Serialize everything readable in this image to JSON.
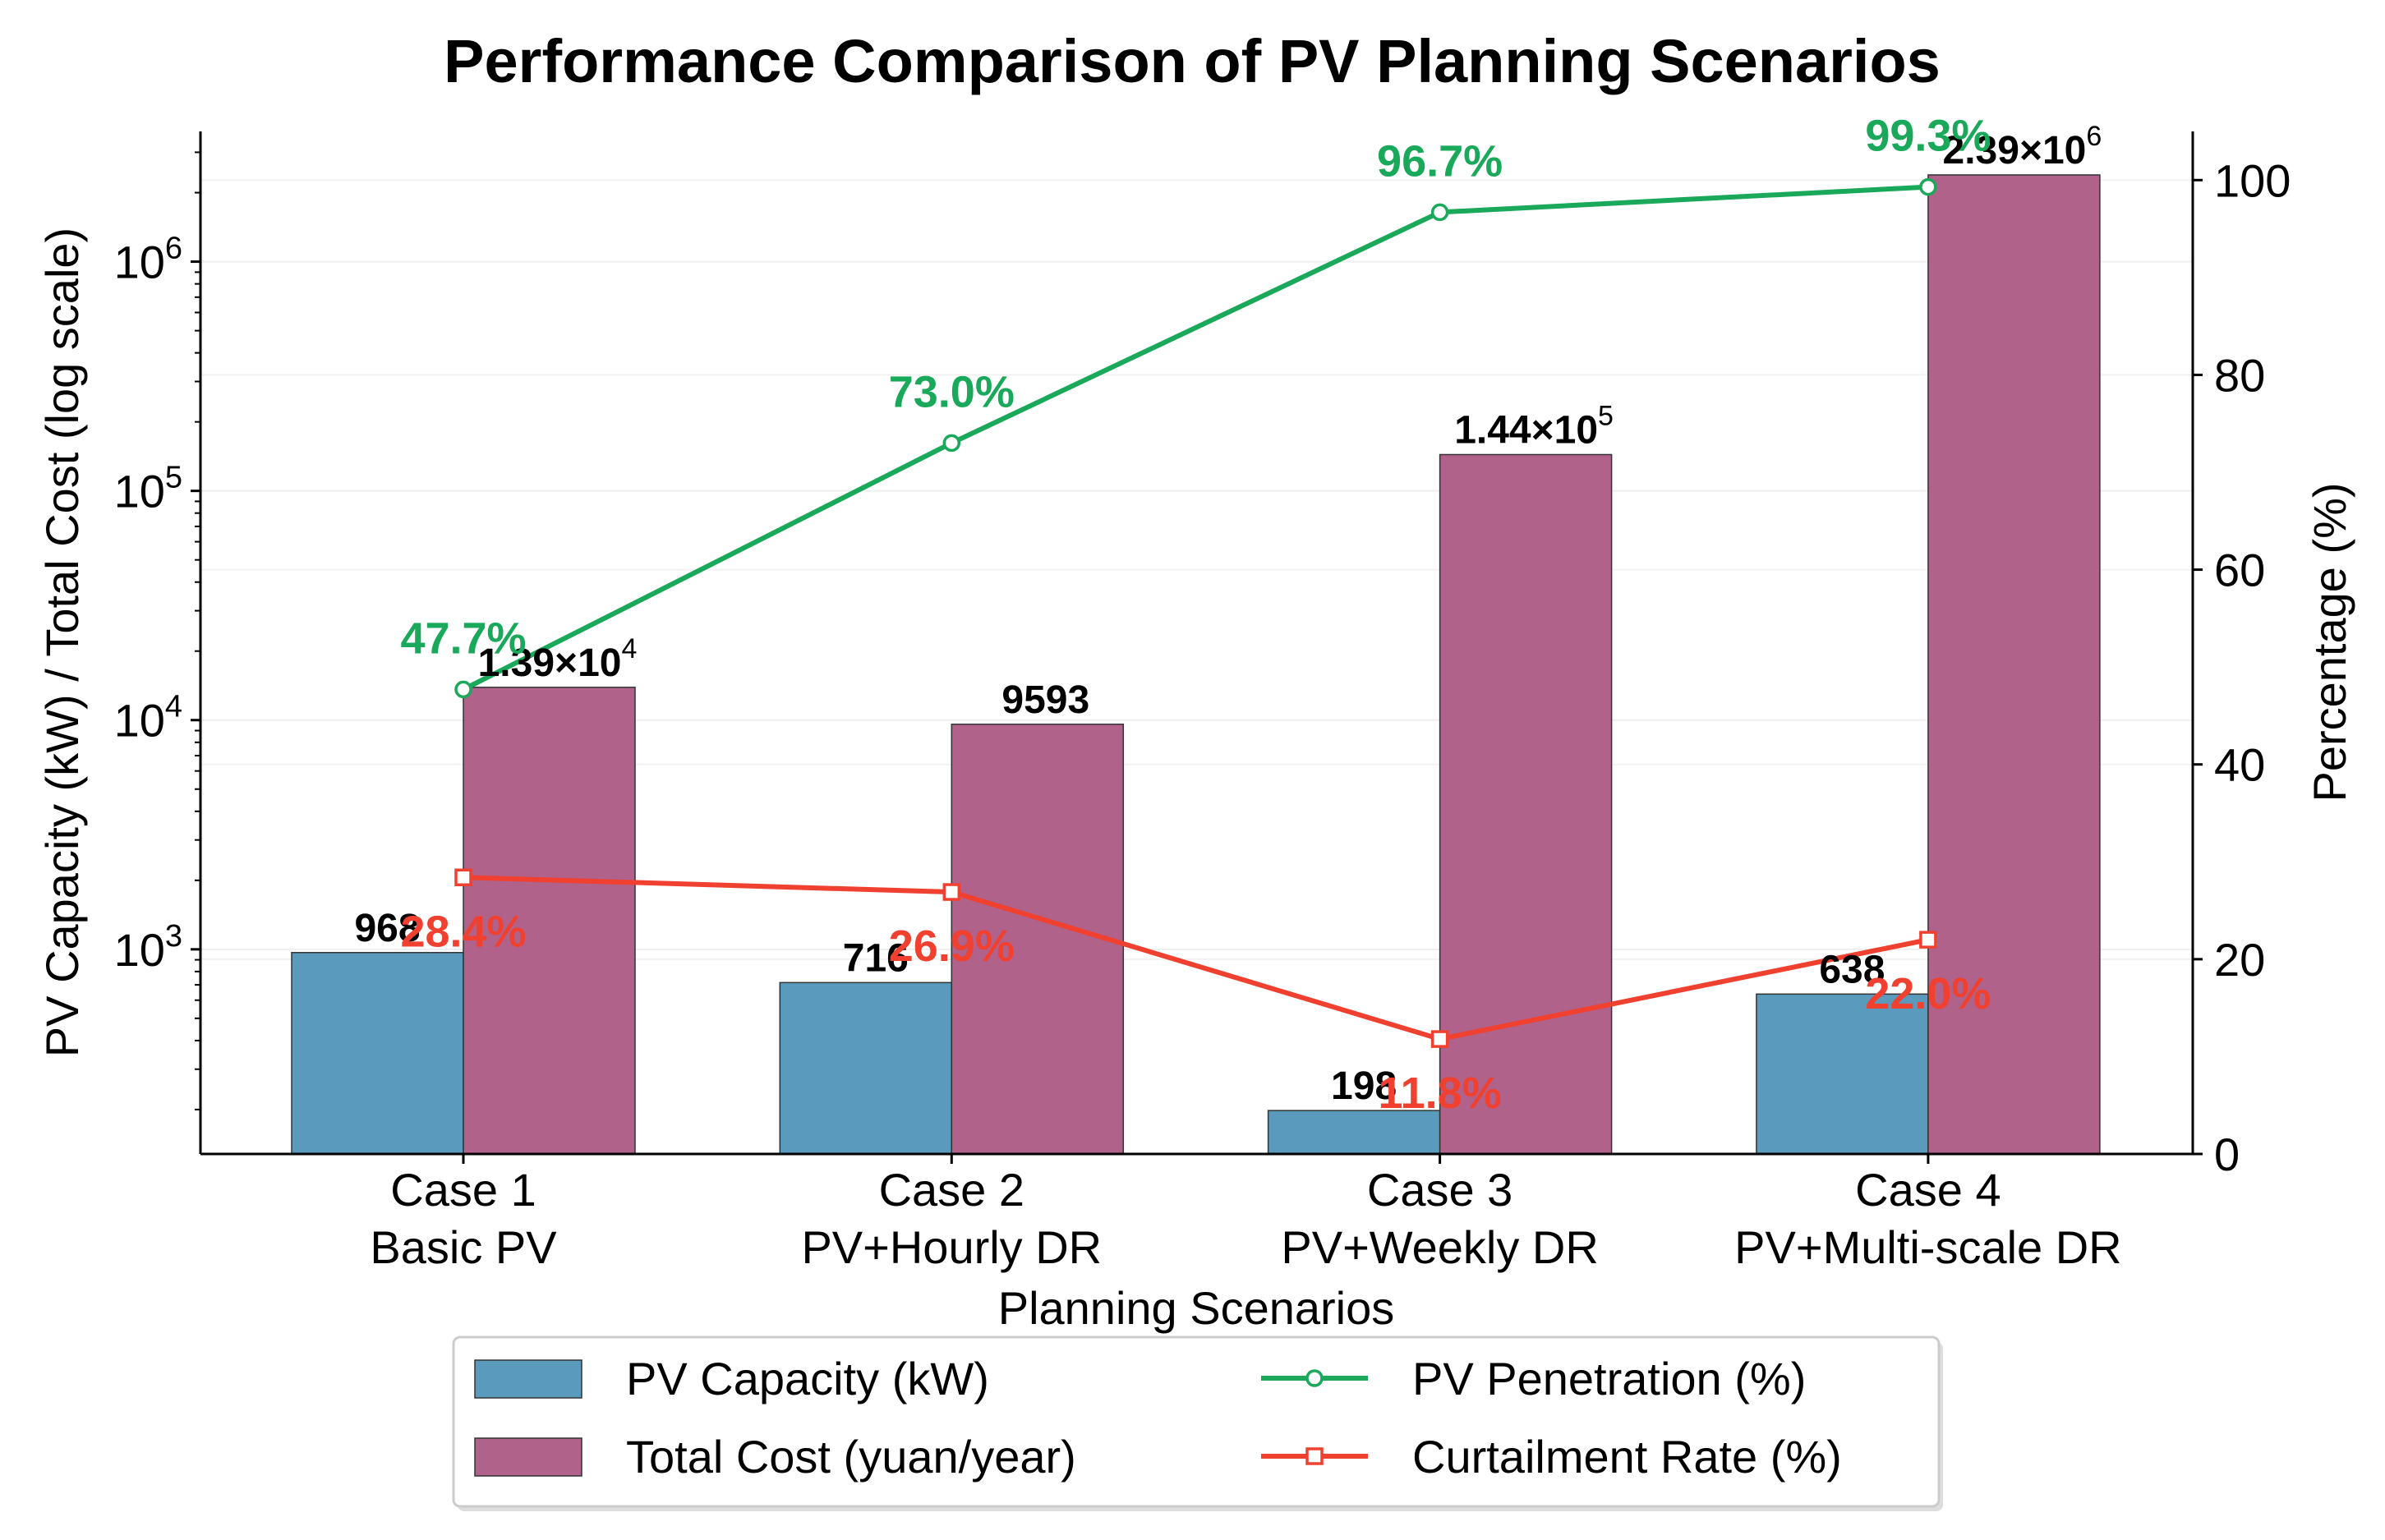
{
  "chart_data": {
    "type": "bar",
    "title": "Performance Comparison of PV Planning Scenarios",
    "xlabel": "Planning Scenarios",
    "ylabel": "PV Capacity (kW) / Total Cost (log scale)",
    "ylabel_right": "Percentage (%)",
    "yscale": "log",
    "ylim": [
      128,
      3700000
    ],
    "ylim_right": [
      0,
      105
    ],
    "yticks": [
      {
        "value": 1000,
        "base": "10",
        "exp": "3"
      },
      {
        "value": 10000,
        "base": "10",
        "exp": "4"
      },
      {
        "value": 100000,
        "base": "10",
        "exp": "5"
      },
      {
        "value": 1000000,
        "base": "10",
        "exp": "6"
      }
    ],
    "yticks_right": [
      "0",
      "20",
      "40",
      "60",
      "80",
      "100"
    ],
    "grid": true,
    "categories": [
      {
        "line1": "Case 1",
        "line2": "Basic PV"
      },
      {
        "line1": "Case 2",
        "line2": "PV+Hourly DR"
      },
      {
        "line1": "Case 3",
        "line2": "PV+Weekly DR"
      },
      {
        "line1": "Case 4",
        "line2": "PV+Multi-scale DR"
      }
    ],
    "series": [
      {
        "name": "PV Capacity (kW)",
        "kind": "bar",
        "axis": "left",
        "color": "#5a9bbd",
        "values": [
          968,
          716,
          198,
          638
        ],
        "labels": [
          {
            "text": "968"
          },
          {
            "text": "716"
          },
          {
            "text": "198"
          },
          {
            "text": "638"
          }
        ]
      },
      {
        "name": "Total Cost (yuan/year)",
        "kind": "bar",
        "axis": "left",
        "color": "#b0628b",
        "values": [
          13900,
          9593,
          144000,
          2390000
        ],
        "labels": [
          {
            "text": "1.39×10",
            "exp": "4"
          },
          {
            "text": "9593",
            "exp": ""
          },
          {
            "text": "1.44×10",
            "exp": "5"
          },
          {
            "text": "2.39×10",
            "exp": "6"
          }
        ]
      },
      {
        "name": "PV Penetration (%)",
        "kind": "line",
        "marker": "circle",
        "axis": "right",
        "color": "#1aa85a",
        "values": [
          47.7,
          73.0,
          96.7,
          99.3
        ],
        "labels": [
          "47.7%",
          "73.0%",
          "96.7%",
          "99.3%"
        ]
      },
      {
        "name": "Curtailment Rate (%)",
        "kind": "line",
        "marker": "square",
        "axis": "right",
        "color": "#f04030",
        "values": [
          28.4,
          26.9,
          11.8,
          22.0
        ],
        "labels": [
          "28.4%",
          "26.9%",
          "11.8%",
          "22.0%"
        ]
      }
    ],
    "legend": {
      "placement": "bottom-center"
    }
  }
}
